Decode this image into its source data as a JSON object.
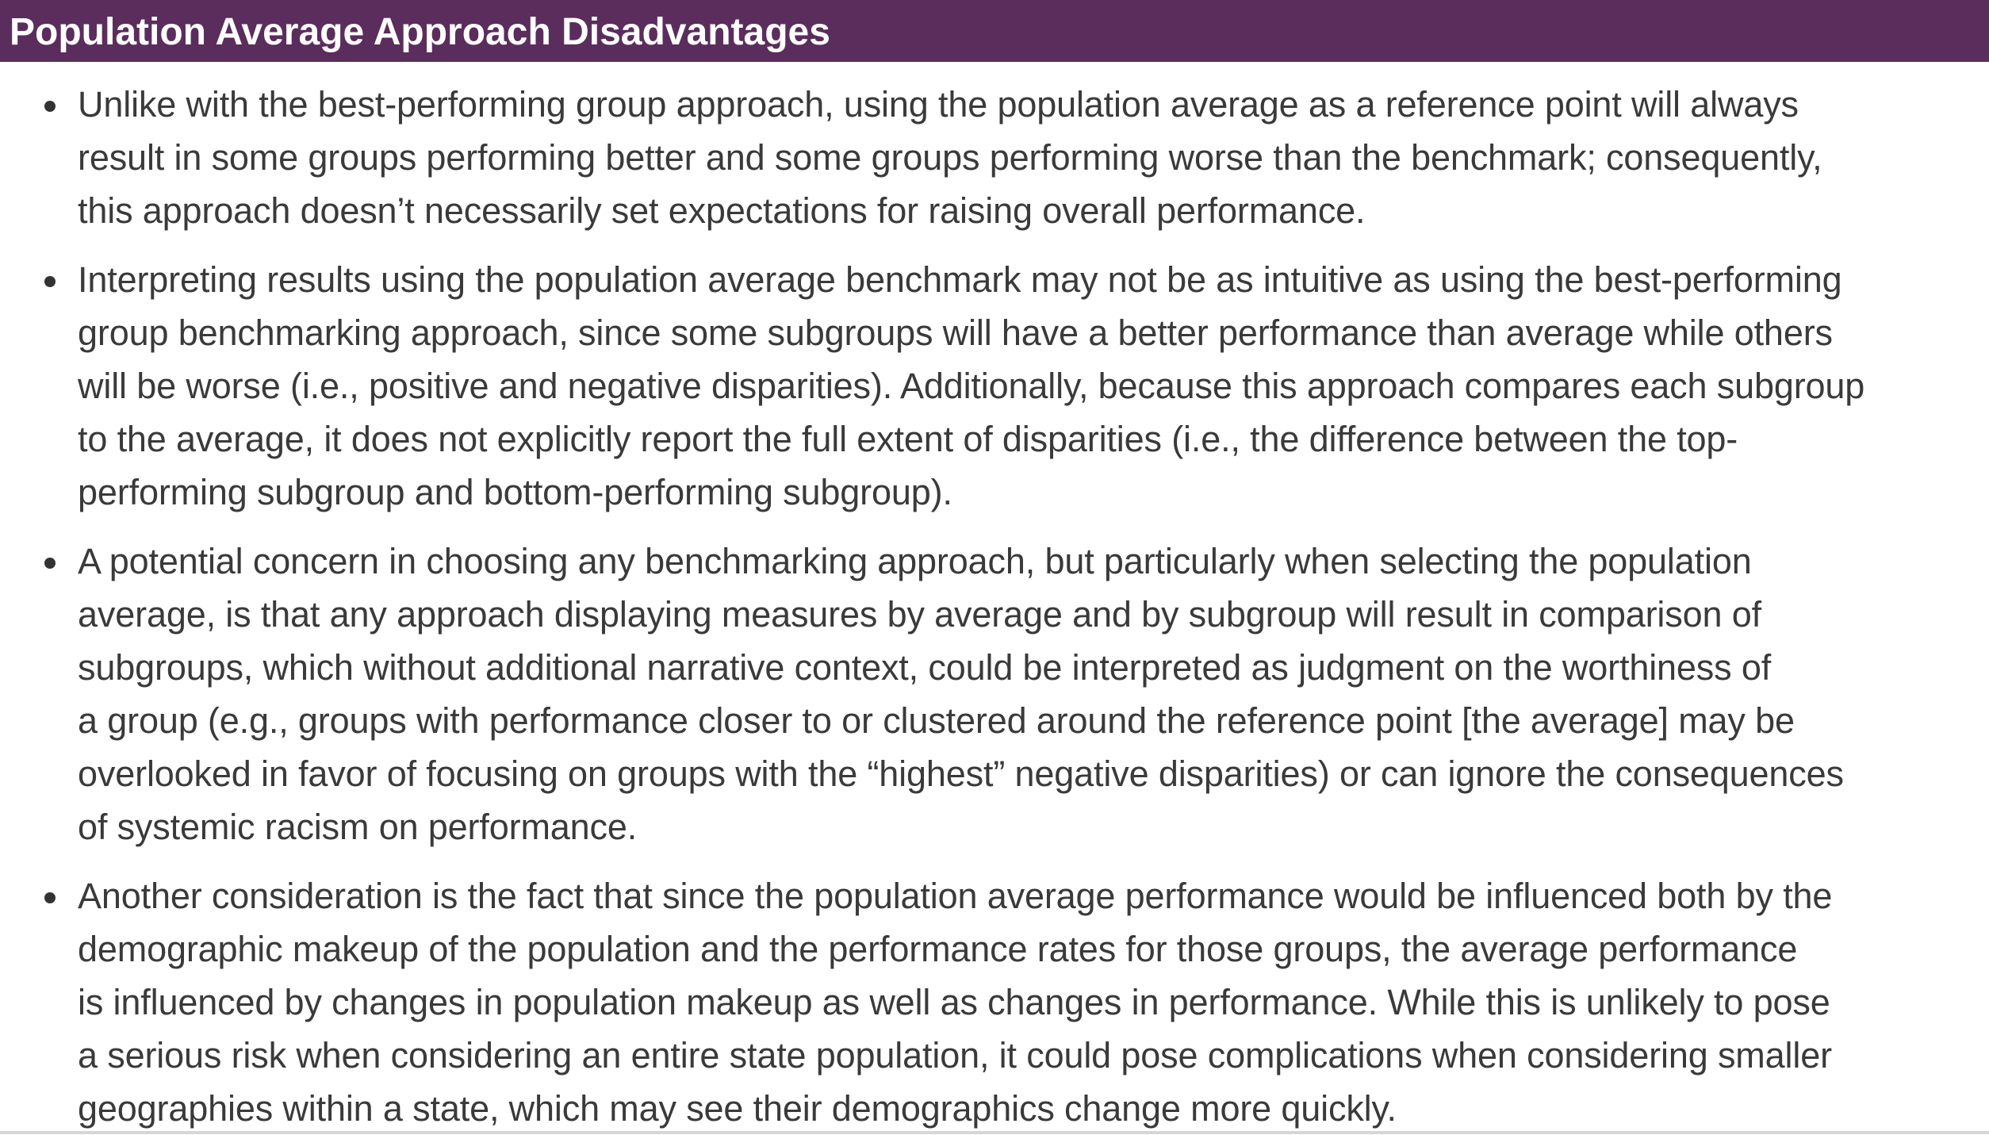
{
  "header": {
    "title": "Population Average Approach Disadvantages",
    "background_color": "#5a2d5c",
    "text_color": "#ffffff"
  },
  "bullets": [
    {
      "text": "Unlike with the best-performing group approach, using the population average as a reference point will always\nresult in some groups performing better and some groups performing worse than the benchmark; consequently,\nthis approach doesn’t necessarily set expectations for raising overall performance."
    },
    {
      "text": "Interpreting results using the population average benchmark may not be as intuitive as using the best-performing\ngroup benchmarking approach, since some subgroups will have a better performance than average while others\nwill be worse (i.e., positive and negative disparities). Additionally, because this approach compares each subgroup\nto the average, it does not explicitly report the full extent of disparities (i.e., the difference between the top-\nperforming subgroup and bottom-performing subgroup)."
    },
    {
      "text": "A potential concern in choosing any benchmarking approach, but particularly when selecting the population\naverage, is that any approach displaying measures by average and by subgroup will result in comparison of\nsubgroups, which without additional narrative context, could be interpreted as judgment on the worthiness of\na group (e.g., groups with performance closer to or clustered around the reference point [the average] may be\noverlooked in favor of focusing on groups with the “highest” negative disparities) or can ignore the consequences\nof systemic racism on performance."
    },
    {
      "text": "Another consideration is the fact that since the population average performance would be influenced both by the\ndemographic makeup of the population and the performance rates for those groups, the average performance\nis influenced by changes in population makeup as well as changes in performance. While this is unlikely to pose\na serious risk when considering an entire state population, it could pose complications when considering smaller\ngeographies within a state, which may see their demographics change more quickly."
    }
  ]
}
